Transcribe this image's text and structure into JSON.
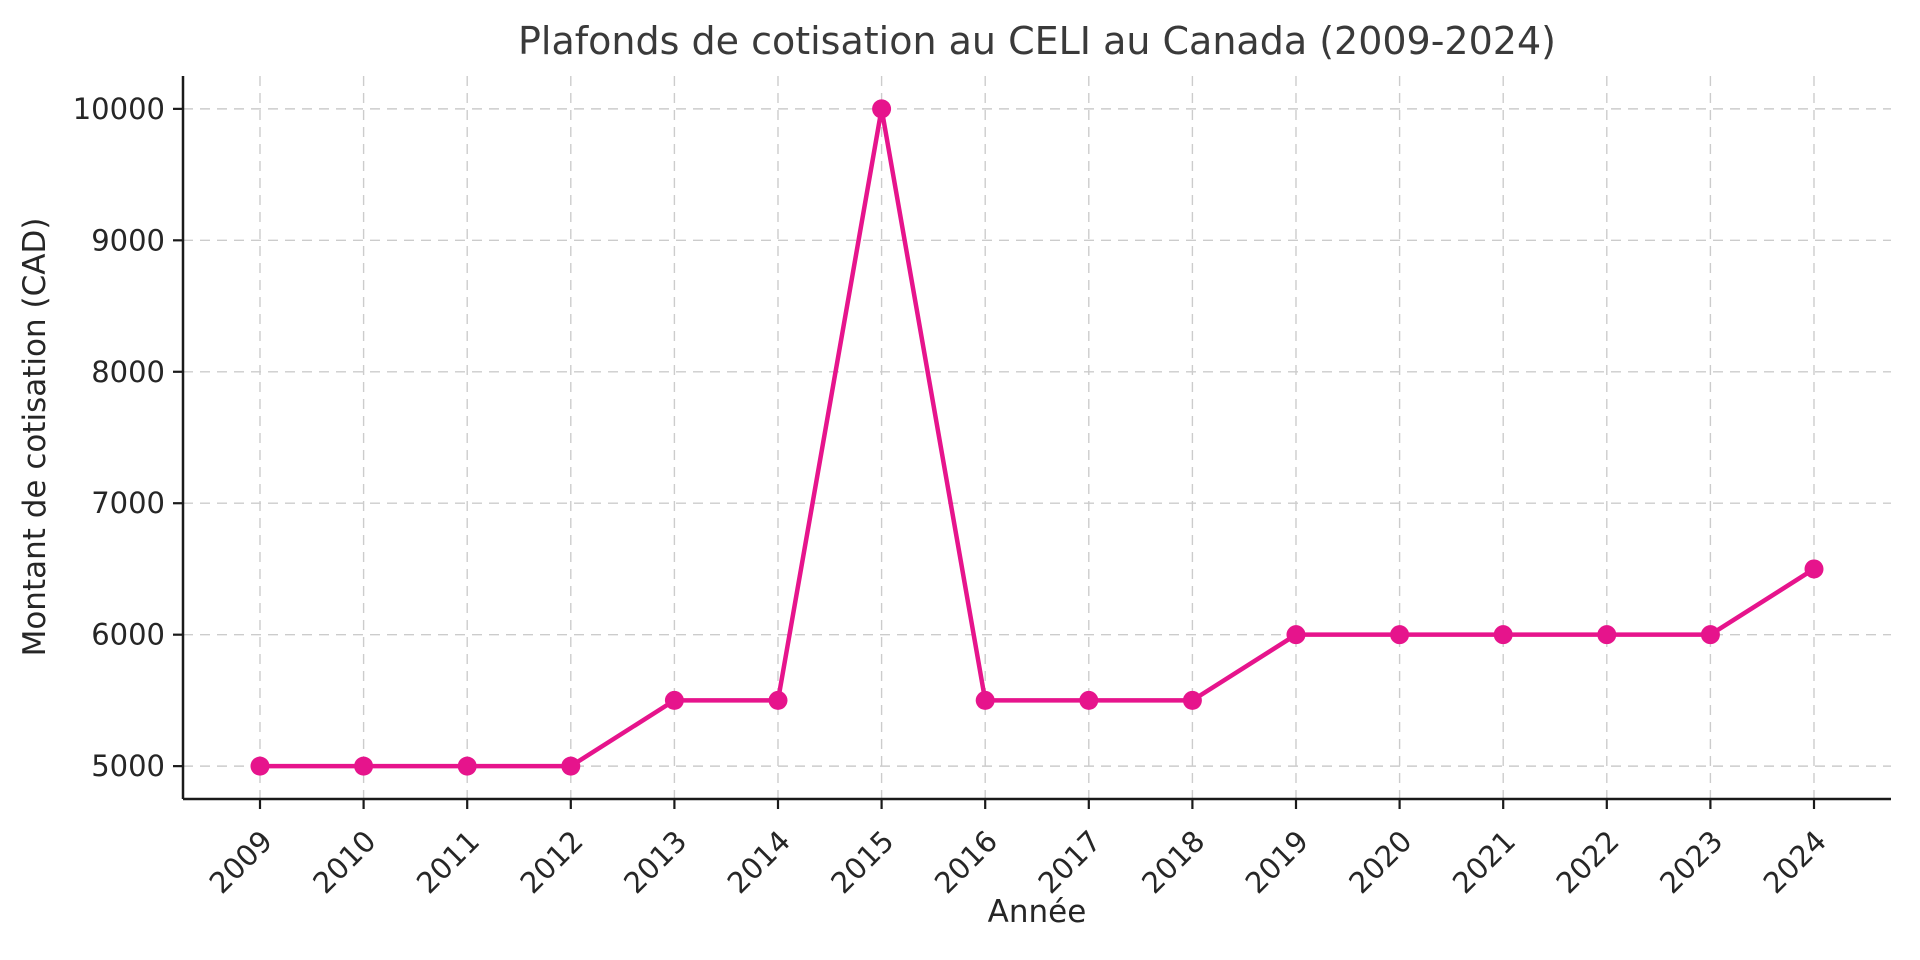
{
  "chart_data": {
    "type": "line",
    "title": "Plafonds de cotisation au CELI au Canada (2009-2024)",
    "xlabel": "Année",
    "ylabel": "Montant de cotisation (CAD)",
    "categories": [
      "2009",
      "2010",
      "2011",
      "2012",
      "2013",
      "2014",
      "2015",
      "2016",
      "2017",
      "2018",
      "2019",
      "2020",
      "2021",
      "2022",
      "2023",
      "2024"
    ],
    "values": [
      5000,
      5000,
      5000,
      5000,
      5500,
      5500,
      10000,
      5500,
      5500,
      5500,
      6000,
      6000,
      6000,
      6000,
      6000,
      6500
    ],
    "yticks": [
      5000,
      6000,
      7000,
      8000,
      9000,
      10000
    ],
    "ylim": [
      4750,
      10250
    ],
    "x_tick_rotation": 45,
    "grid": "dashed",
    "legend": "none",
    "line_color": "#e6148c",
    "marker": "circle",
    "axis_color": "#1a1a1a",
    "tick_text_color": "#262626",
    "grid_color": "#cccccc",
    "background": "#ffffff"
  }
}
